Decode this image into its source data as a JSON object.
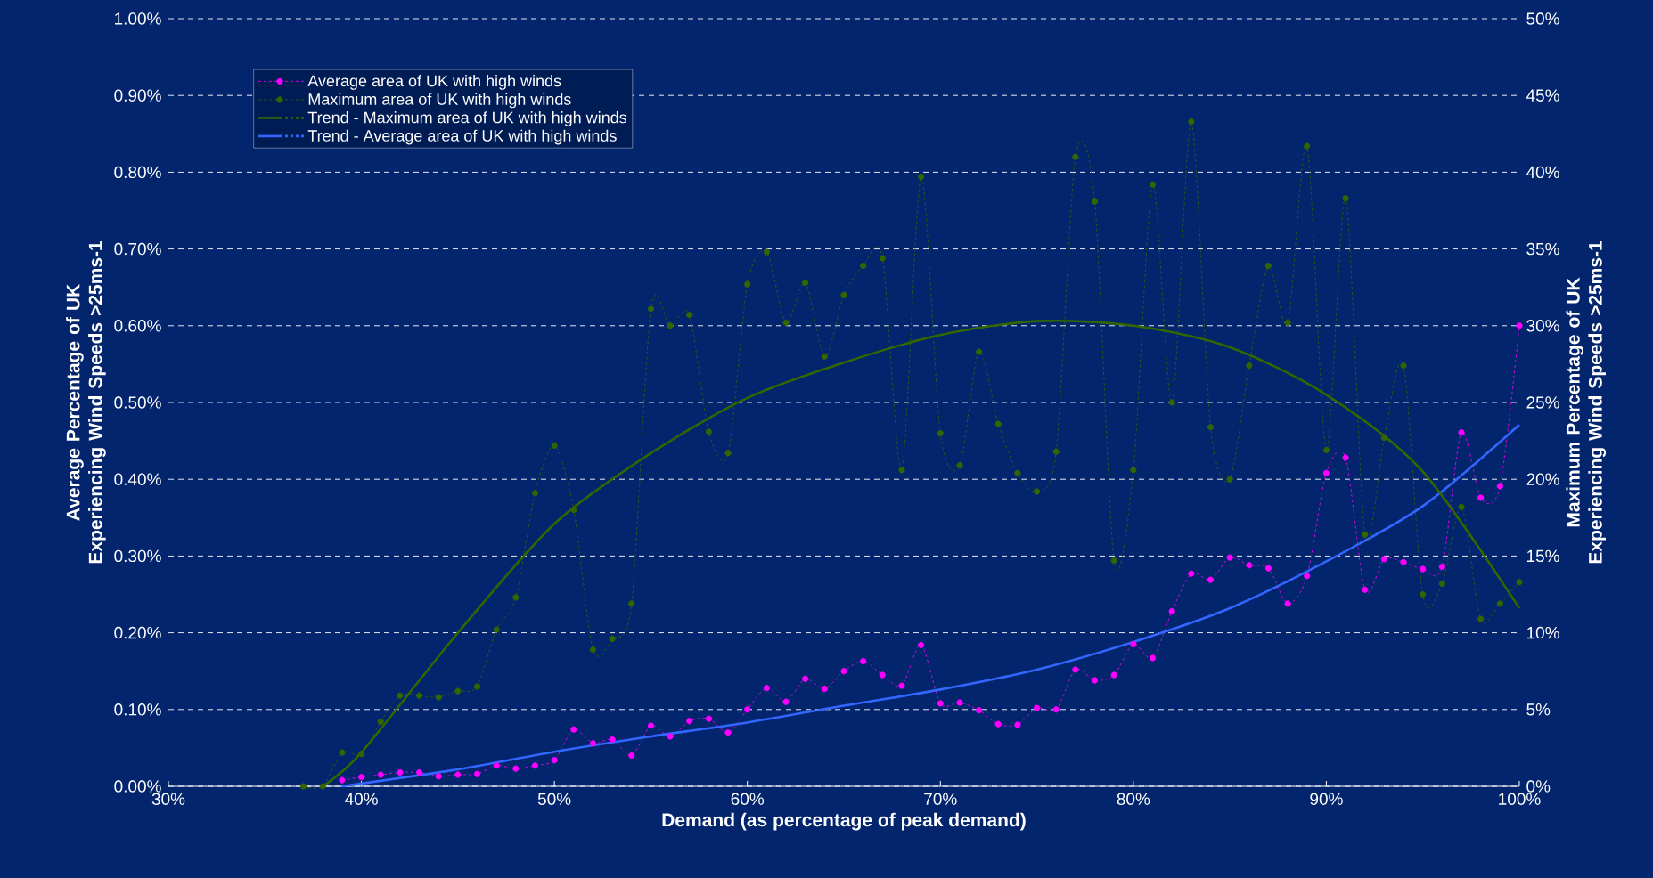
{
  "chart_data": {
    "type": "line",
    "xlabel": "Demand (as percentage of peak demand)",
    "ylabel": "Average Percentage of UK Experiencing Wind Speeds >25ms-1",
    "y2label": "Maximum Percentage of UK Experiencing Wind Speeds >25ms-1",
    "xlim": [
      30,
      100
    ],
    "xticks": [
      {
        "value": 30,
        "label": "30%"
      },
      {
        "value": 40,
        "label": "40%"
      },
      {
        "value": 50,
        "label": "50%"
      },
      {
        "value": 60,
        "label": "60%"
      },
      {
        "value": 70,
        "label": "70%"
      },
      {
        "value": 80,
        "label": "80%"
      },
      {
        "value": 90,
        "label": "90%"
      },
      {
        "value": 100,
        "label": "100%"
      }
    ],
    "ylim": [
      0,
      1
    ],
    "yticks": [
      {
        "value": 0,
        "label": "0.00%"
      },
      {
        "value": 0.1,
        "label": "0.10%"
      },
      {
        "value": 0.2,
        "label": "0.20%"
      },
      {
        "value": 0.3,
        "label": "0.30%"
      },
      {
        "value": 0.4,
        "label": "0.40%"
      },
      {
        "value": 0.5,
        "label": "0.50%"
      },
      {
        "value": 0.6,
        "label": "0.60%"
      },
      {
        "value": 0.7,
        "label": "0.70%"
      },
      {
        "value": 0.8,
        "label": "0.80%"
      },
      {
        "value": 0.9,
        "label": "0.90%"
      },
      {
        "value": 1,
        "label": "1.00%"
      }
    ],
    "y2lim": [
      0,
      50
    ],
    "y2ticks": [
      {
        "value": 0,
        "label": "0%"
      },
      {
        "value": 5,
        "label": "5%"
      },
      {
        "value": 10,
        "label": "10%"
      },
      {
        "value": 15,
        "label": "15%"
      },
      {
        "value": 20,
        "label": "20%"
      },
      {
        "value": 25,
        "label": "25%"
      },
      {
        "value": 30,
        "label": "30%"
      },
      {
        "value": 35,
        "label": "35%"
      },
      {
        "value": 40,
        "label": "40%"
      },
      {
        "value": 45,
        "label": "45%"
      },
      {
        "value": 50,
        "label": "50%"
      }
    ],
    "grid": "y",
    "legend": "top left",
    "series": [
      {
        "name": "Average area of UK with high winds",
        "color": "#ff00ff",
        "marker": "circle",
        "line_style": "dashed",
        "x": [
          39,
          40,
          41,
          42,
          43,
          44,
          45,
          46,
          47,
          48,
          49,
          50,
          51,
          52,
          53,
          54,
          55,
          56,
          57,
          58,
          59,
          60,
          61,
          62,
          63,
          64,
          65,
          66,
          67,
          68,
          69,
          70,
          71,
          72,
          73,
          74,
          75,
          76,
          77,
          78,
          79,
          80,
          81,
          82,
          83,
          84,
          85,
          86,
          87,
          88,
          89,
          90,
          91,
          92,
          93,
          94,
          95,
          96,
          97,
          98,
          99,
          100
        ],
        "values": [
          0.008,
          0.012,
          0.015,
          0.018,
          0.018,
          0.013,
          0.015,
          0.016,
          0.027,
          0.023,
          0.027,
          0.034,
          0.074,
          0.056,
          0.061,
          0.04,
          0.079,
          0.065,
          0.085,
          0.088,
          0.07,
          0.1,
          0.128,
          0.11,
          0.14,
          0.127,
          0.15,
          0.163,
          0.145,
          0.131,
          0.184,
          0.108,
          0.109,
          0.099,
          0.081,
          0.08,
          0.102,
          0.1,
          0.152,
          0.138,
          0.145,
          0.185,
          0.167,
          0.228,
          0.277,
          0.269,
          0.298,
          0.288,
          0.284,
          0.238,
          0.274,
          0.408,
          0.428,
          0.256,
          0.296,
          0.292,
          0.283,
          0.286,
          0.461,
          0.376,
          0.391,
          0.6
        ]
      },
      {
        "name": "Maximum area of UK with high winds",
        "color": "#336600",
        "marker": "circle",
        "line_style": "dashed",
        "axis": "y2",
        "x": [
          37,
          38,
          39,
          40,
          41,
          42,
          43,
          44,
          45,
          46,
          47,
          48,
          49,
          50,
          51,
          52,
          53,
          54,
          55,
          56,
          57,
          58,
          59,
          60,
          61,
          62,
          63,
          64,
          65,
          66,
          67,
          68,
          69,
          70,
          71,
          72,
          73,
          74,
          75,
          76,
          77,
          78,
          79,
          80,
          81,
          82,
          83,
          84,
          85,
          86,
          87,
          88,
          89,
          90,
          91,
          92,
          93,
          94,
          95,
          96,
          97,
          98,
          99,
          100
        ],
        "values": [
          0,
          0,
          2.2,
          2.1,
          4.2,
          5.9,
          5.9,
          5.8,
          6.2,
          6.5,
          10.2,
          12.3,
          19.1,
          22.2,
          18.0,
          8.9,
          9.6,
          11.9,
          31.1,
          30.0,
          30.7,
          23.1,
          21.7,
          32.7,
          34.8,
          30.2,
          32.8,
          28.0,
          32.0,
          33.9,
          34.4,
          20.6,
          39.7,
          23.0,
          20.9,
          28.3,
          23.6,
          20.4,
          19.2,
          21.8,
          41.0,
          38.1,
          14.7,
          20.6,
          39.2,
          25.0,
          43.3,
          23.4,
          20.0,
          27.4,
          33.9,
          30.2,
          41.7,
          21.9,
          38.3,
          16.4,
          22.7,
          27.4,
          12.5,
          13.2,
          18.2,
          10.9,
          11.9,
          13.3
        ]
      },
      {
        "name": "Trend - Maximum area of UK with high winds",
        "type": "line",
        "color": "#336600",
        "marker": "none",
        "line_style": "solid",
        "axis": "y2",
        "x": [
          38,
          40,
          45,
          50,
          55,
          60,
          65,
          70,
          75,
          80,
          85,
          90,
          95,
          100
        ],
        "values": [
          0,
          2.2,
          10,
          17.1,
          21.7,
          25.3,
          27.6,
          29.4,
          30.3,
          30,
          28.6,
          25.5,
          20.5,
          11.6
        ]
      },
      {
        "name": "Trend - Average area of UK with high winds",
        "type": "line",
        "color": "#3366ff",
        "marker": "none",
        "line_style": "solid",
        "x": [
          39,
          45,
          50,
          55,
          60,
          65,
          70,
          75,
          80,
          85,
          90,
          95,
          100
        ],
        "values": [
          0,
          0.022,
          0.045,
          0.065,
          0.083,
          0.105,
          0.126,
          0.152,
          0.188,
          0.232,
          0.293,
          0.365,
          0.471
        ]
      }
    ]
  }
}
